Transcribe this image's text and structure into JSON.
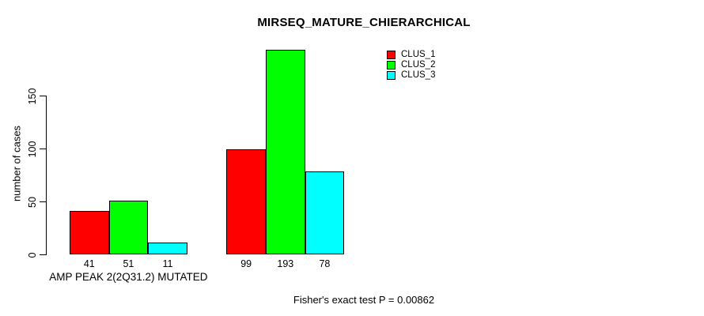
{
  "chart_data": {
    "type": "bar",
    "title": "MIRSEQ_MATURE_CHIERARCHICAL",
    "ylabel": "number of cases",
    "xlabel": "",
    "yticks": [
      0,
      50,
      100,
      150
    ],
    "ylim": [
      0,
      150
    ],
    "grid": "off",
    "legend_position": "top-right",
    "categories": [
      "AMP PEAK 2(2Q31.2) MUTATED",
      ""
    ],
    "series": [
      {
        "name": "CLUS_1",
        "color": "#ff0000",
        "values": [
          41,
          99
        ]
      },
      {
        "name": "CLUS_2",
        "color": "#00ff00",
        "values": [
          51,
          193
        ]
      },
      {
        "name": "CLUS_3",
        "color": "#00ffff",
        "values": [
          11,
          78
        ]
      }
    ],
    "bar_value_labels": [
      [
        41,
        51,
        11
      ],
      [
        99,
        193,
        78
      ]
    ],
    "footnote": "Fisher's exact test P = 0.00862"
  }
}
